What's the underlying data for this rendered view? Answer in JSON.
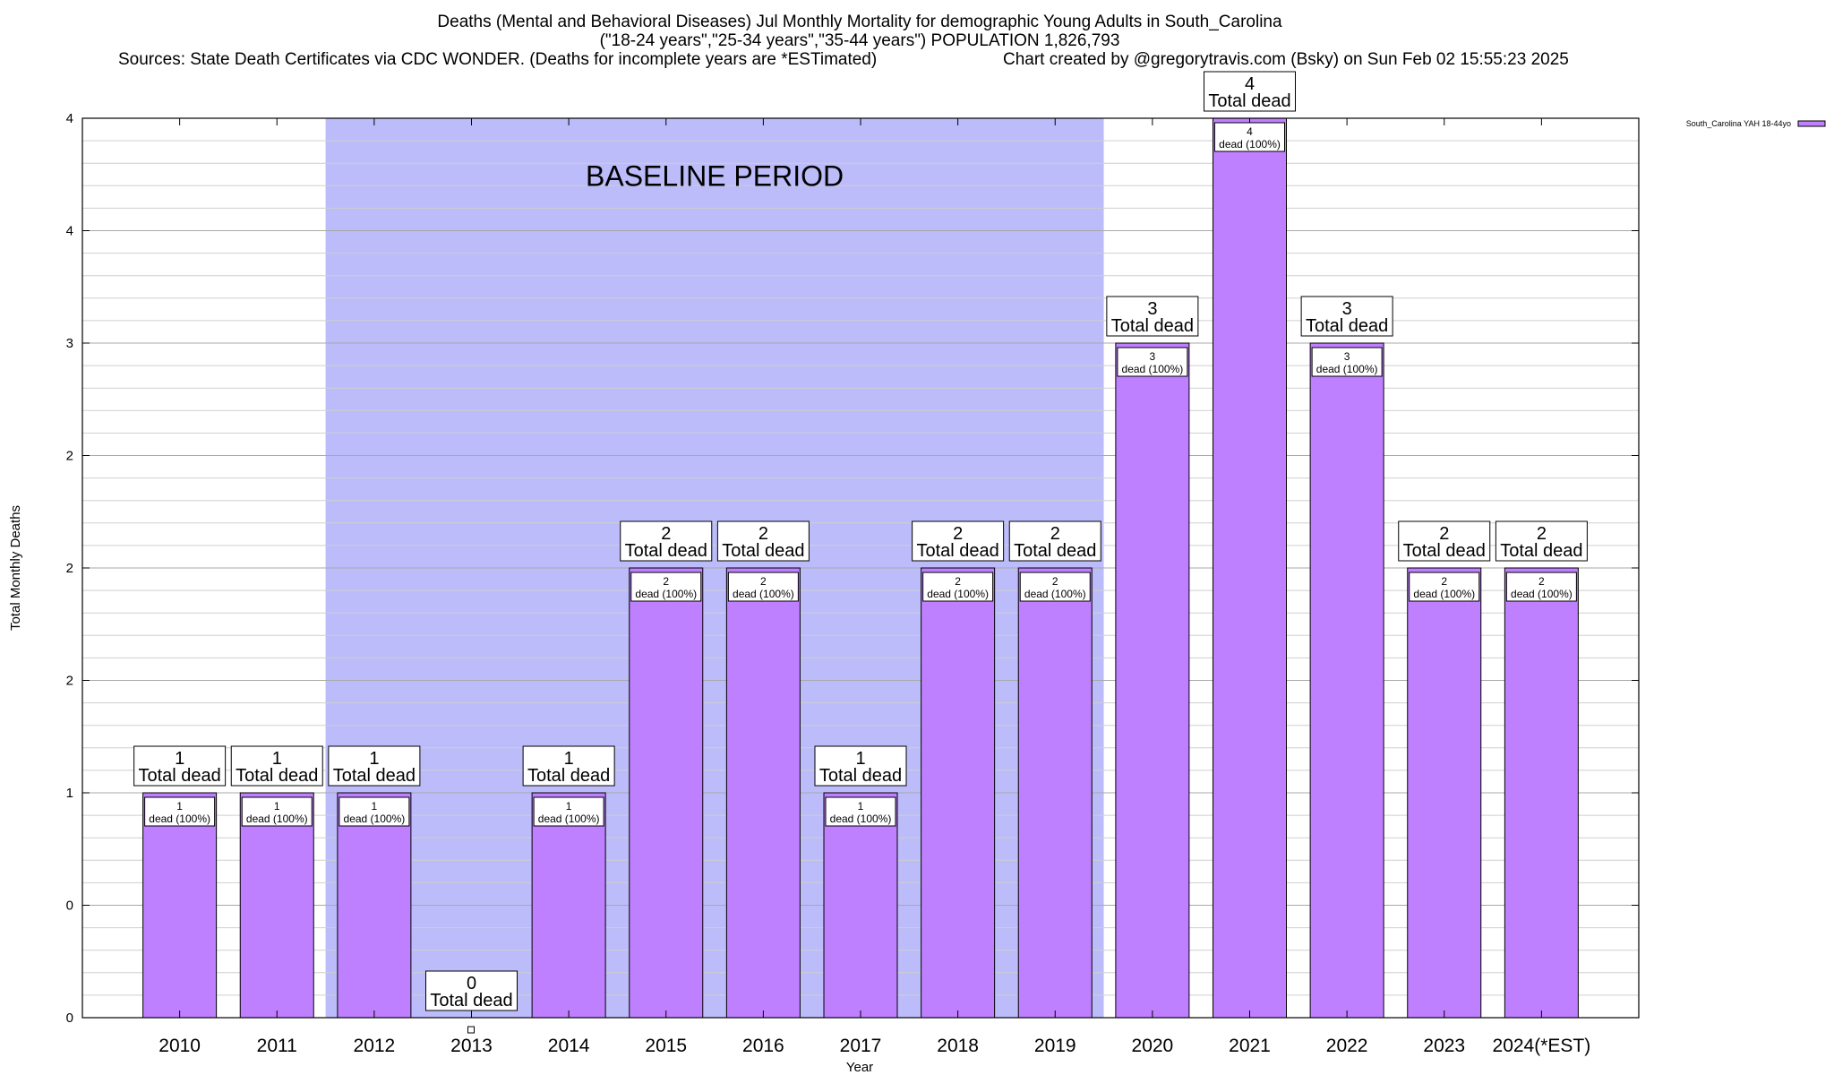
{
  "chart_data": {
    "type": "bar",
    "title": "Deaths (Mental and Behavioral Diseases) Jul Monthly Mortality for demographic Young Adults in South_Carolina",
    "subtitle": "(\"18-24 years\",\"25-34 years\",\"35-44 years\") POPULATION 1,826,793",
    "sources": "Sources: State Death Certificates via CDC WONDER. (Deaths for incomplete years are *ESTimated)",
    "credit": "Chart created by @gregorytravis.com (Bsky) on Sun Feb 02 15:55:23 2025",
    "xlabel": "Year",
    "ylabel": "Total Monthly Deaths",
    "ylim": [
      0,
      4
    ],
    "y_tick_labels": [
      "0",
      "0",
      "1",
      "2",
      "2",
      "2",
      "3",
      "4",
      "4"
    ],
    "grid": true,
    "legend_label": "South_Carolina YAH 18-44yo",
    "legend_position": "top-right",
    "baseline_label": "BASELINE PERIOD",
    "baseline_range": [
      "2012",
      "2019"
    ],
    "categories": [
      "2010",
      "2011",
      "2012",
      "2013",
      "2014",
      "2015",
      "2016",
      "2017",
      "2018",
      "2019",
      "2020",
      "2021",
      "2022",
      "2023",
      "2024(*EST)"
    ],
    "series": [
      {
        "name": "South_Carolina YAH 18-44yo",
        "values": [
          1,
          1,
          1,
          0,
          1,
          2,
          2,
          1,
          2,
          2,
          3,
          4,
          3,
          2,
          2
        ]
      }
    ],
    "total_label": "Total dead",
    "inner_label": "dead (100%)",
    "colors": {
      "bar": "#bf80ff",
      "baseline_band": "#bcbcfa",
      "border": "#000000"
    }
  }
}
